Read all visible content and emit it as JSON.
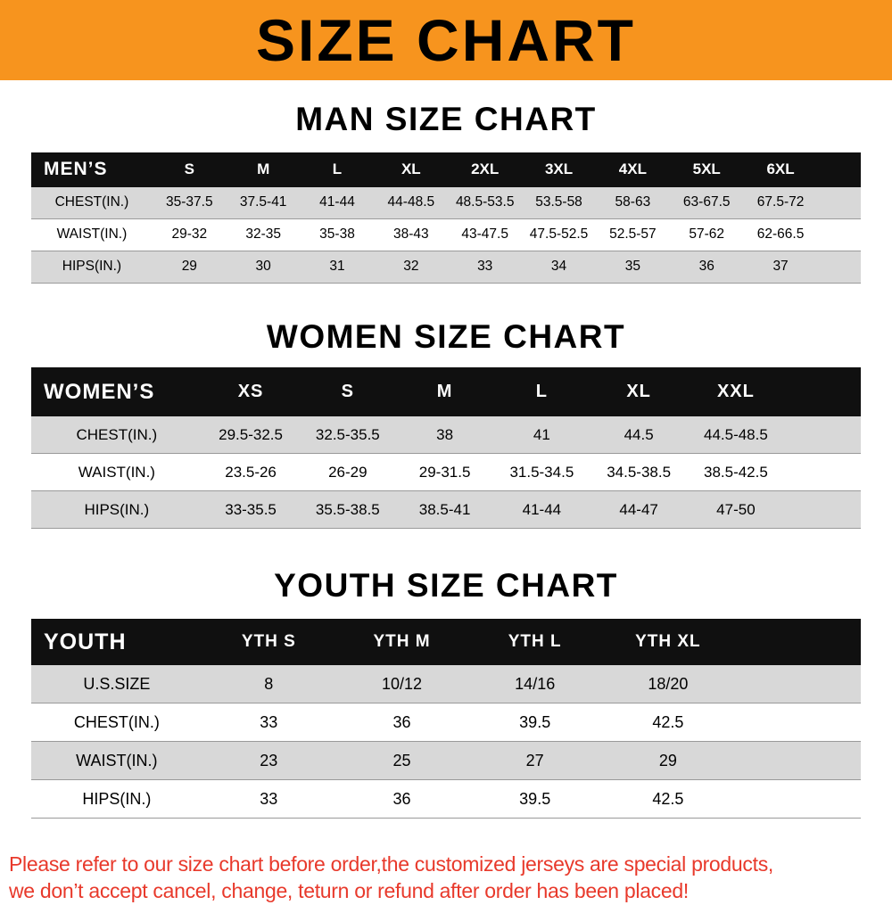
{
  "banner": {
    "title": "SIZE CHART"
  },
  "colors": {
    "banner_bg": "#F7941E",
    "table_header_bg": "#101010",
    "shaded_row": "#D8D8D8",
    "row_border": "#9A9A9A",
    "footer_text": "#E8392B"
  },
  "chart_data": [
    {
      "type": "table",
      "title": "MAN SIZE CHART",
      "columns": [
        "MEN’S",
        "S",
        "M",
        "L",
        "XL",
        "2XL",
        "3XL",
        "4XL",
        "5XL",
        "6XL"
      ],
      "rows": [
        [
          "CHEST(IN.)",
          "35-37.5",
          "37.5-41",
          "41-44",
          "44-48.5",
          "48.5-53.5",
          "53.5-58",
          "58-63",
          "63-67.5",
          "67.5-72"
        ],
        [
          "WAIST(IN.)",
          "29-32",
          "32-35",
          "35-38",
          "38-43",
          "43-47.5",
          "47.5-52.5",
          "52.5-57",
          "57-62",
          "62-66.5"
        ],
        [
          "HIPS(IN.)",
          "29",
          "30",
          "31",
          "32",
          "33",
          "34",
          "35",
          "36",
          "37"
        ]
      ]
    },
    {
      "type": "table",
      "title": "WOMEN SIZE CHART",
      "columns": [
        "WOMEN’S",
        "XS",
        "S",
        "M",
        "L",
        "XL",
        "XXL"
      ],
      "rows": [
        [
          "CHEST(IN.)",
          "29.5-32.5",
          "32.5-35.5",
          "38",
          "41",
          "44.5",
          "44.5-48.5"
        ],
        [
          "WAIST(IN.)",
          "23.5-26",
          "26-29",
          "29-31.5",
          "31.5-34.5",
          "34.5-38.5",
          "38.5-42.5"
        ],
        [
          "HIPS(IN.)",
          "33-35.5",
          "35.5-38.5",
          "38.5-41",
          "41-44",
          "44-47",
          "47-50"
        ]
      ]
    },
    {
      "type": "table",
      "title": "YOUTH SIZE CHART",
      "columns": [
        "YOUTH",
        "YTH S",
        "YTH M",
        "YTH L",
        "YTH XL"
      ],
      "rows": [
        [
          "U.S.SIZE",
          "8",
          "10/12",
          "14/16",
          "18/20"
        ],
        [
          "CHEST(IN.)",
          "33",
          "36",
          "39.5",
          "42.5"
        ],
        [
          "WAIST(IN.)",
          "23",
          "25",
          "27",
          "29"
        ],
        [
          "HIPS(IN.)",
          "33",
          "36",
          "39.5",
          "42.5"
        ]
      ]
    }
  ],
  "footer": {
    "line1": "Please refer to our size chart before order,the customized jerseys are special products,",
    "line2": "we don’t accept cancel, change, teturn or refund after order has been placed!"
  }
}
